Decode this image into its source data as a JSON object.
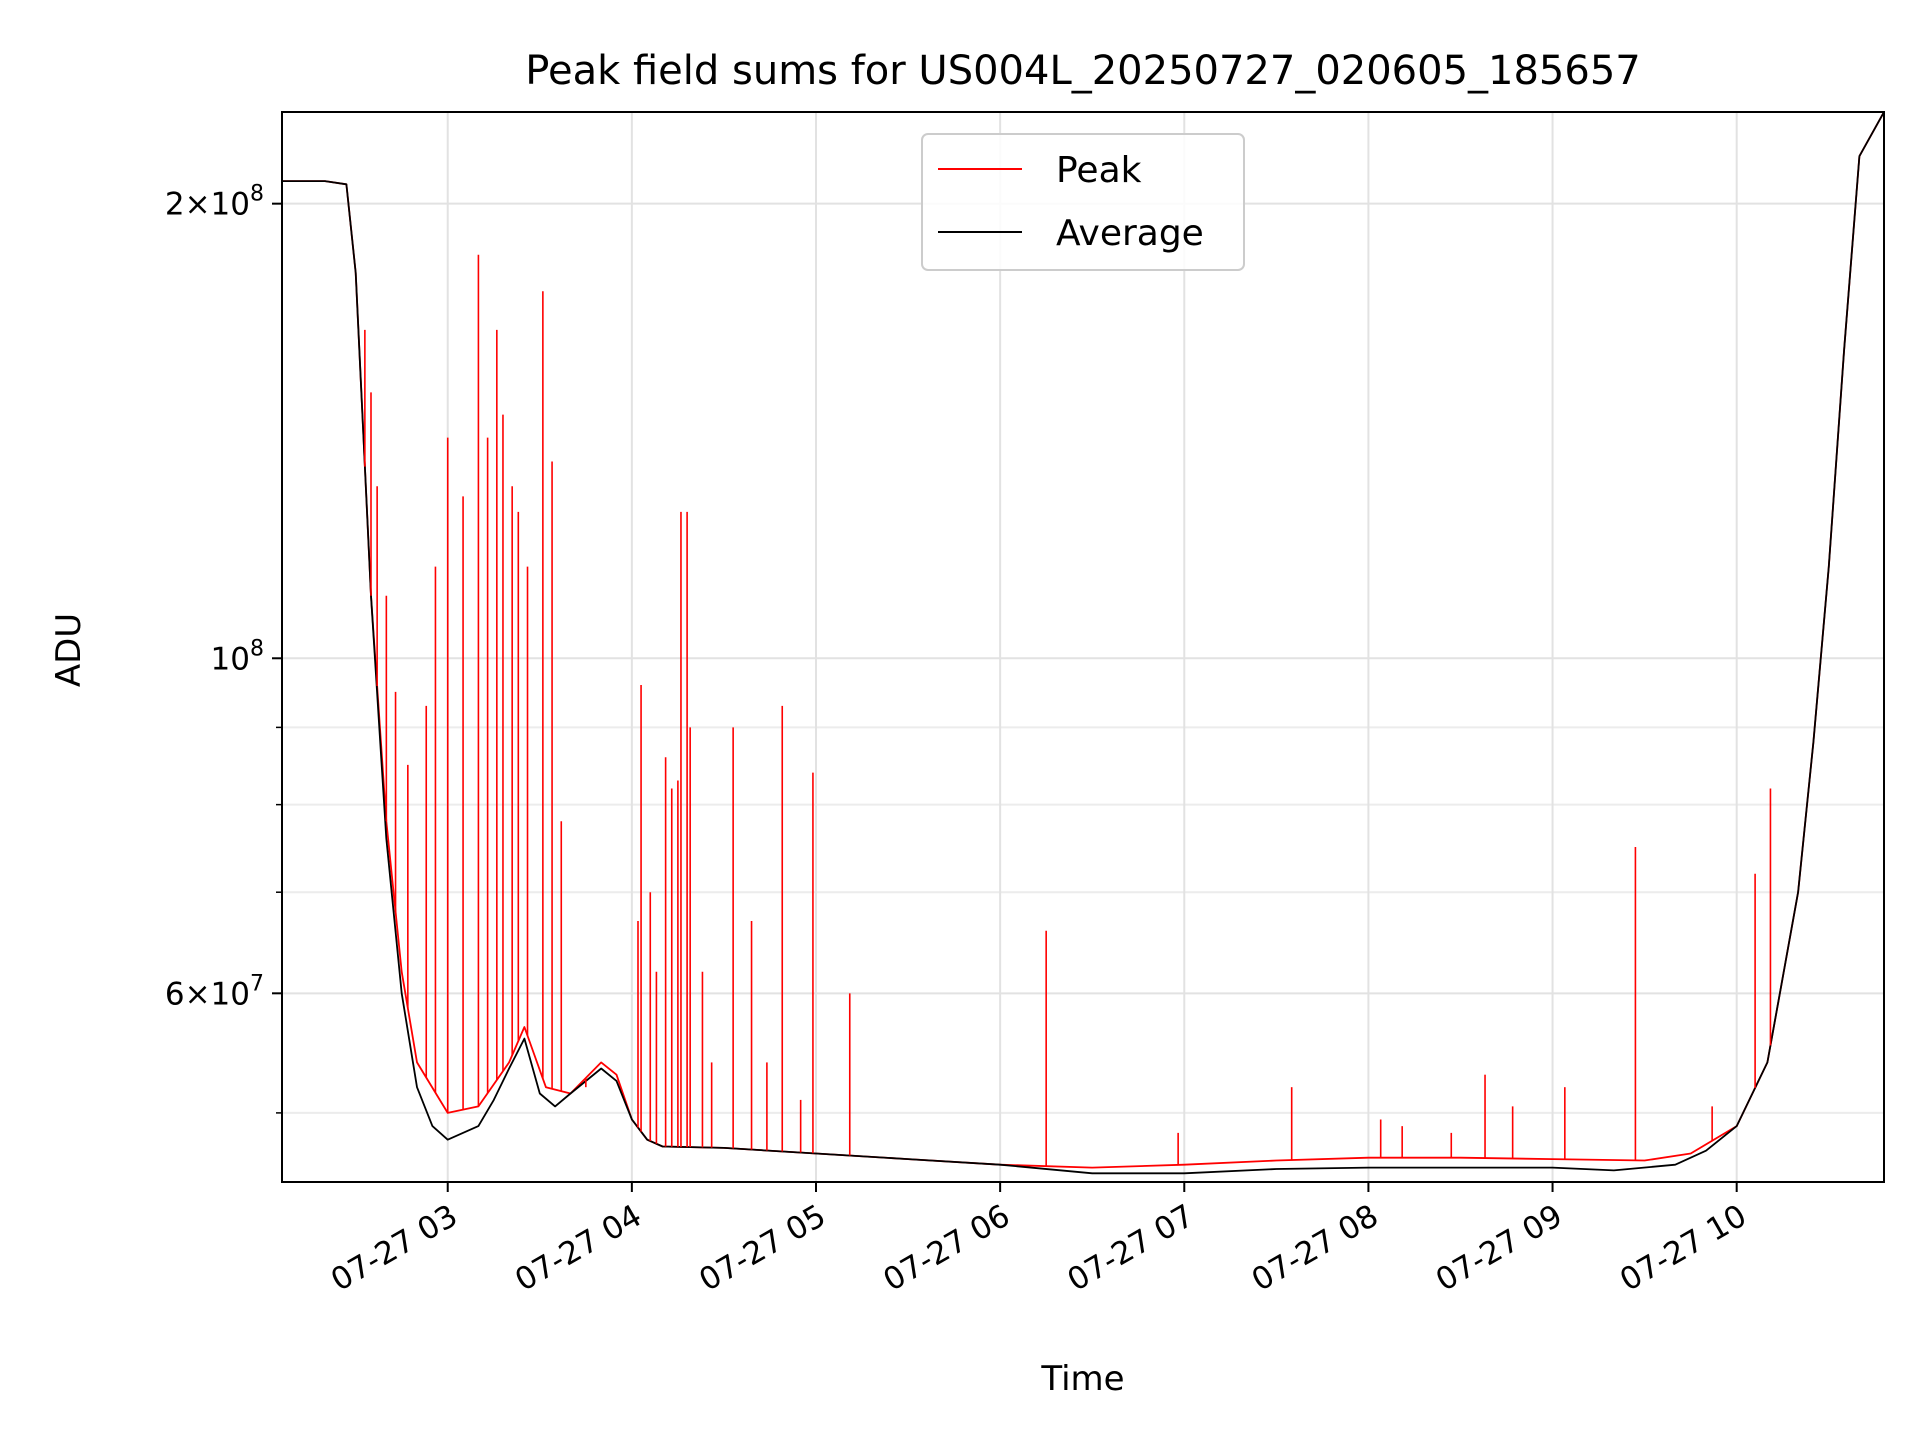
{
  "chart_data": {
    "type": "line",
    "title": "Peak field sums for US004L_20250727_020605_185657",
    "xlabel": "Time",
    "ylabel": "ADU",
    "yscale": "log",
    "xlim": [
      "2025-07-27 02:06",
      "2025-07-27 10:48"
    ],
    "ylim": [
      45000000,
      230000000
    ],
    "grid": true,
    "legend_position": "upper center",
    "x_ticks": [
      "07-27 03",
      "07-27 04",
      "07-27 05",
      "07-27 06",
      "07-27 07",
      "07-27 08",
      "07-27 09",
      "07-27 10"
    ],
    "x_tick_times": [
      "2025-07-27 03:00",
      "2025-07-27 04:00",
      "2025-07-27 05:00",
      "2025-07-27 06:00",
      "2025-07-27 07:00",
      "2025-07-27 08:00",
      "2025-07-27 09:00",
      "2025-07-27 10:00"
    ],
    "y_ticks_major": [
      {
        "value": 200000000,
        "mantissa": "2",
        "exp": "8"
      },
      {
        "value": 100000000,
        "mantissa": "",
        "exp": "8"
      },
      {
        "value": 60000000,
        "mantissa": "6",
        "exp": "7"
      }
    ],
    "y_ticks_minor": [
      50000000,
      70000000,
      80000000,
      90000000
    ],
    "series": [
      {
        "name": "Peak",
        "color": "#ff0000",
        "x": [
          "2025-07-27 02:06",
          "2025-07-27 02:20",
          "2025-07-27 02:27",
          "2025-07-27 02:30",
          "2025-07-27 02:35",
          "2025-07-27 02:40",
          "2025-07-27 02:45",
          "2025-07-27 02:50",
          "2025-07-27 03:00",
          "2025-07-27 03:10",
          "2025-07-27 03:20",
          "2025-07-27 03:25",
          "2025-07-27 03:32",
          "2025-07-27 03:40",
          "2025-07-27 03:50",
          "2025-07-27 03:55",
          "2025-07-27 04:00",
          "2025-07-27 04:05",
          "2025-07-27 04:10",
          "2025-07-27 04:30",
          "2025-07-27 05:00",
          "2025-07-27 05:30",
          "2025-07-27 06:00",
          "2025-07-27 06:30",
          "2025-07-27 07:00",
          "2025-07-27 07:30",
          "2025-07-27 08:00",
          "2025-07-27 08:30",
          "2025-07-27 09:00",
          "2025-07-27 09:30",
          "2025-07-27 09:45",
          "2025-07-27 10:00",
          "2025-07-27 10:10",
          "2025-07-27 10:20",
          "2025-07-27 10:25",
          "2025-07-27 10:30",
          "2025-07-27 10:35",
          "2025-07-27 10:40",
          "2025-07-27 10:48"
        ],
        "y": [
          207000000,
          207000000,
          206000000,
          180000000,
          110000000,
          78000000,
          62000000,
          54000000,
          50000000,
          50500000,
          54000000,
          57000000,
          52000000,
          51500000,
          54000000,
          53000000,
          49500000,
          48000000,
          47500000,
          47400000,
          47000000,
          46600000,
          46200000,
          46000000,
          46200000,
          46500000,
          46700000,
          46700000,
          46600000,
          46500000,
          47000000,
          49000000,
          54000000,
          70000000,
          88000000,
          115000000,
          160000000,
          215000000,
          230000000
        ]
      },
      {
        "name": "Average",
        "color": "#000000",
        "x": [
          "2025-07-27 02:06",
          "2025-07-27 02:20",
          "2025-07-27 02:27",
          "2025-07-27 02:30",
          "2025-07-27 02:35",
          "2025-07-27 02:40",
          "2025-07-27 02:45",
          "2025-07-27 02:50",
          "2025-07-27 02:55",
          "2025-07-27 03:00",
          "2025-07-27 03:10",
          "2025-07-27 03:15",
          "2025-07-27 03:20",
          "2025-07-27 03:25",
          "2025-07-27 03:30",
          "2025-07-27 03:35",
          "2025-07-27 03:40",
          "2025-07-27 03:50",
          "2025-07-27 03:55",
          "2025-07-27 04:00",
          "2025-07-27 04:05",
          "2025-07-27 04:10",
          "2025-07-27 04:30",
          "2025-07-27 05:00",
          "2025-07-27 05:30",
          "2025-07-27 06:00",
          "2025-07-27 06:30",
          "2025-07-27 07:00",
          "2025-07-27 07:30",
          "2025-07-27 08:00",
          "2025-07-27 08:30",
          "2025-07-27 09:00",
          "2025-07-27 09:20",
          "2025-07-27 09:40",
          "2025-07-27 09:50",
          "2025-07-27 10:00",
          "2025-07-27 10:10",
          "2025-07-27 10:20",
          "2025-07-27 10:25",
          "2025-07-27 10:30",
          "2025-07-27 10:35",
          "2025-07-27 10:40",
          "2025-07-27 10:48"
        ],
        "y": [
          207000000,
          207000000,
          206000000,
          180000000,
          110000000,
          76000000,
          60000000,
          52000000,
          49000000,
          48000000,
          49000000,
          51000000,
          53500000,
          56000000,
          51500000,
          50500000,
          51500000,
          53500000,
          52500000,
          49500000,
          48000000,
          47500000,
          47400000,
          47000000,
          46600000,
          46200000,
          45600000,
          45600000,
          45900000,
          46000000,
          46000000,
          46000000,
          45800000,
          46200000,
          47200000,
          49000000,
          54000000,
          70000000,
          88000000,
          115000000,
          160000000,
          215000000,
          230000000
        ]
      }
    ],
    "peak_spikes": [
      {
        "x": "2025-07-27 02:33",
        "y": 165000000
      },
      {
        "x": "2025-07-27 02:35",
        "y": 150000000
      },
      {
        "x": "2025-07-27 02:37",
        "y": 130000000
      },
      {
        "x": "2025-07-27 02:40",
        "y": 110000000
      },
      {
        "x": "2025-07-27 02:43",
        "y": 95000000
      },
      {
        "x": "2025-07-27 02:47",
        "y": 85000000
      },
      {
        "x": "2025-07-27 02:53",
        "y": 93000000
      },
      {
        "x": "2025-07-27 02:56",
        "y": 115000000
      },
      {
        "x": "2025-07-27 03:00",
        "y": 140000000
      },
      {
        "x": "2025-07-27 03:05",
        "y": 128000000
      },
      {
        "x": "2025-07-27 03:10",
        "y": 185000000
      },
      {
        "x": "2025-07-27 03:13",
        "y": 140000000
      },
      {
        "x": "2025-07-27 03:16",
        "y": 165000000
      },
      {
        "x": "2025-07-27 03:18",
        "y": 145000000
      },
      {
        "x": "2025-07-27 03:21",
        "y": 130000000
      },
      {
        "x": "2025-07-27 03:23",
        "y": 125000000
      },
      {
        "x": "2025-07-27 03:26",
        "y": 115000000
      },
      {
        "x": "2025-07-27 03:31",
        "y": 175000000
      },
      {
        "x": "2025-07-27 03:34",
        "y": 135000000
      },
      {
        "x": "2025-07-27 03:37",
        "y": 78000000
      },
      {
        "x": "2025-07-27 03:45",
        "y": 52000000
      },
      {
        "x": "2025-07-27 04:02",
        "y": 67000000
      },
      {
        "x": "2025-07-27 04:03",
        "y": 96000000
      },
      {
        "x": "2025-07-27 04:06",
        "y": 70000000
      },
      {
        "x": "2025-07-27 04:08",
        "y": 62000000
      },
      {
        "x": "2025-07-27 04:11",
        "y": 86000000
      },
      {
        "x": "2025-07-27 04:13",
        "y": 82000000
      },
      {
        "x": "2025-07-27 04:15",
        "y": 83000000
      },
      {
        "x": "2025-07-27 04:16",
        "y": 125000000
      },
      {
        "x": "2025-07-27 04:18",
        "y": 125000000
      },
      {
        "x": "2025-07-27 04:19",
        "y": 90000000
      },
      {
        "x": "2025-07-27 04:23",
        "y": 62000000
      },
      {
        "x": "2025-07-27 04:26",
        "y": 54000000
      },
      {
        "x": "2025-07-27 04:33",
        "y": 90000000
      },
      {
        "x": "2025-07-27 04:39",
        "y": 67000000
      },
      {
        "x": "2025-07-27 04:44",
        "y": 54000000
      },
      {
        "x": "2025-07-27 04:49",
        "y": 93000000
      },
      {
        "x": "2025-07-27 04:55",
        "y": 51000000
      },
      {
        "x": "2025-07-27 04:59",
        "y": 84000000
      },
      {
        "x": "2025-07-27 05:11",
        "y": 60000000
      },
      {
        "x": "2025-07-27 06:15",
        "y": 66000000
      },
      {
        "x": "2025-07-27 06:58",
        "y": 48500000
      },
      {
        "x": "2025-07-27 07:35",
        "y": 52000000
      },
      {
        "x": "2025-07-27 08:04",
        "y": 49500000
      },
      {
        "x": "2025-07-27 08:11",
        "y": 49000000
      },
      {
        "x": "2025-07-27 08:27",
        "y": 48500000
      },
      {
        "x": "2025-07-27 08:38",
        "y": 53000000
      },
      {
        "x": "2025-07-27 08:47",
        "y": 50500000
      },
      {
        "x": "2025-07-27 09:04",
        "y": 52000000
      },
      {
        "x": "2025-07-27 09:27",
        "y": 75000000
      },
      {
        "x": "2025-07-27 09:52",
        "y": 50500000
      },
      {
        "x": "2025-07-27 10:06",
        "y": 72000000
      },
      {
        "x": "2025-07-27 10:11",
        "y": 82000000
      }
    ]
  }
}
